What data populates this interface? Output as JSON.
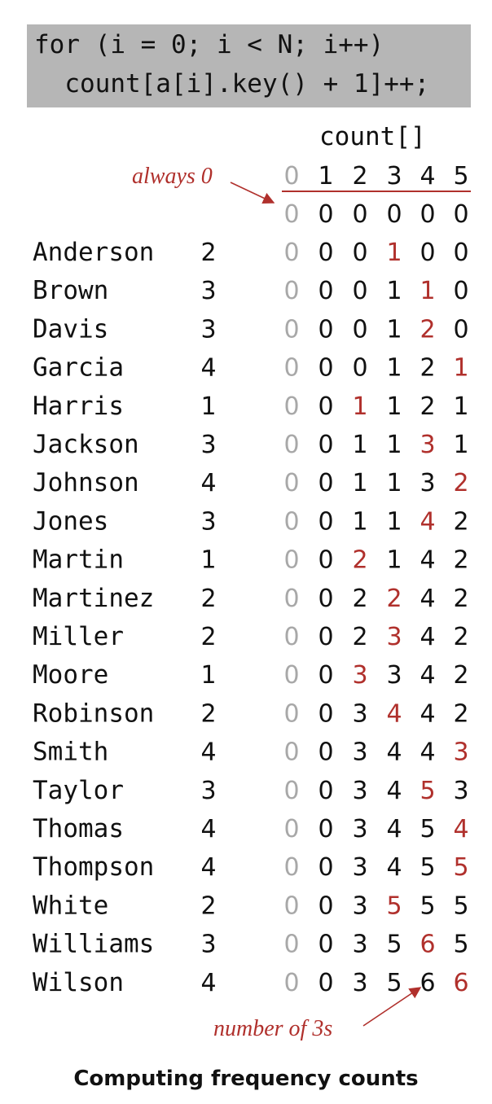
{
  "code": {
    "line1": "for (i = 0; i < N; i++)",
    "line2": "  count[a[i].key() + 1]++;"
  },
  "array_label": "count[]",
  "column_indices": [
    "0",
    "1",
    "2",
    "3",
    "4",
    "5"
  ],
  "annotations": {
    "always_zero": "always 0",
    "number_of_3s": "number of 3s"
  },
  "initial_row": [
    0,
    0,
    0,
    0,
    0,
    0
  ],
  "rows": [
    {
      "name": "Anderson",
      "key": 2,
      "counts": [
        0,
        0,
        0,
        1,
        0,
        0
      ],
      "incremented": 3
    },
    {
      "name": "Brown",
      "key": 3,
      "counts": [
        0,
        0,
        0,
        1,
        1,
        0
      ],
      "incremented": 4
    },
    {
      "name": "Davis",
      "key": 3,
      "counts": [
        0,
        0,
        0,
        1,
        2,
        0
      ],
      "incremented": 4
    },
    {
      "name": "Garcia",
      "key": 4,
      "counts": [
        0,
        0,
        0,
        1,
        2,
        1
      ],
      "incremented": 5
    },
    {
      "name": "Harris",
      "key": 1,
      "counts": [
        0,
        0,
        1,
        1,
        2,
        1
      ],
      "incremented": 2
    },
    {
      "name": "Jackson",
      "key": 3,
      "counts": [
        0,
        0,
        1,
        1,
        3,
        1
      ],
      "incremented": 4
    },
    {
      "name": "Johnson",
      "key": 4,
      "counts": [
        0,
        0,
        1,
        1,
        3,
        2
      ],
      "incremented": 5
    },
    {
      "name": "Jones",
      "key": 3,
      "counts": [
        0,
        0,
        1,
        1,
        4,
        2
      ],
      "incremented": 4
    },
    {
      "name": "Martin",
      "key": 1,
      "counts": [
        0,
        0,
        2,
        1,
        4,
        2
      ],
      "incremented": 2
    },
    {
      "name": "Martinez",
      "key": 2,
      "counts": [
        0,
        0,
        2,
        2,
        4,
        2
      ],
      "incremented": 3
    },
    {
      "name": "Miller",
      "key": 2,
      "counts": [
        0,
        0,
        2,
        3,
        4,
        2
      ],
      "incremented": 3
    },
    {
      "name": "Moore",
      "key": 1,
      "counts": [
        0,
        0,
        3,
        3,
        4,
        2
      ],
      "incremented": 2
    },
    {
      "name": "Robinson",
      "key": 2,
      "counts": [
        0,
        0,
        3,
        4,
        4,
        2
      ],
      "incremented": 3
    },
    {
      "name": "Smith",
      "key": 4,
      "counts": [
        0,
        0,
        3,
        4,
        4,
        3
      ],
      "incremented": 5
    },
    {
      "name": "Taylor",
      "key": 3,
      "counts": [
        0,
        0,
        3,
        4,
        5,
        3
      ],
      "incremented": 4
    },
    {
      "name": "Thomas",
      "key": 4,
      "counts": [
        0,
        0,
        3,
        4,
        5,
        4
      ],
      "incremented": 5
    },
    {
      "name": "Thompson",
      "key": 4,
      "counts": [
        0,
        0,
        3,
        4,
        5,
        5
      ],
      "incremented": 5
    },
    {
      "name": "White",
      "key": 2,
      "counts": [
        0,
        0,
        3,
        5,
        5,
        5
      ],
      "incremented": 3
    },
    {
      "name": "Williams",
      "key": 3,
      "counts": [
        0,
        0,
        3,
        5,
        6,
        5
      ],
      "incremented": 4
    },
    {
      "name": "Wilson",
      "key": 4,
      "counts": [
        0,
        0,
        3,
        5,
        6,
        6
      ],
      "incremented": 5
    }
  ],
  "caption": "Computing frequency counts",
  "colors": {
    "highlight": "#b0302c",
    "zero_column": "#a8a8a8",
    "code_background": "#b6b6b6",
    "text": "#111111"
  }
}
